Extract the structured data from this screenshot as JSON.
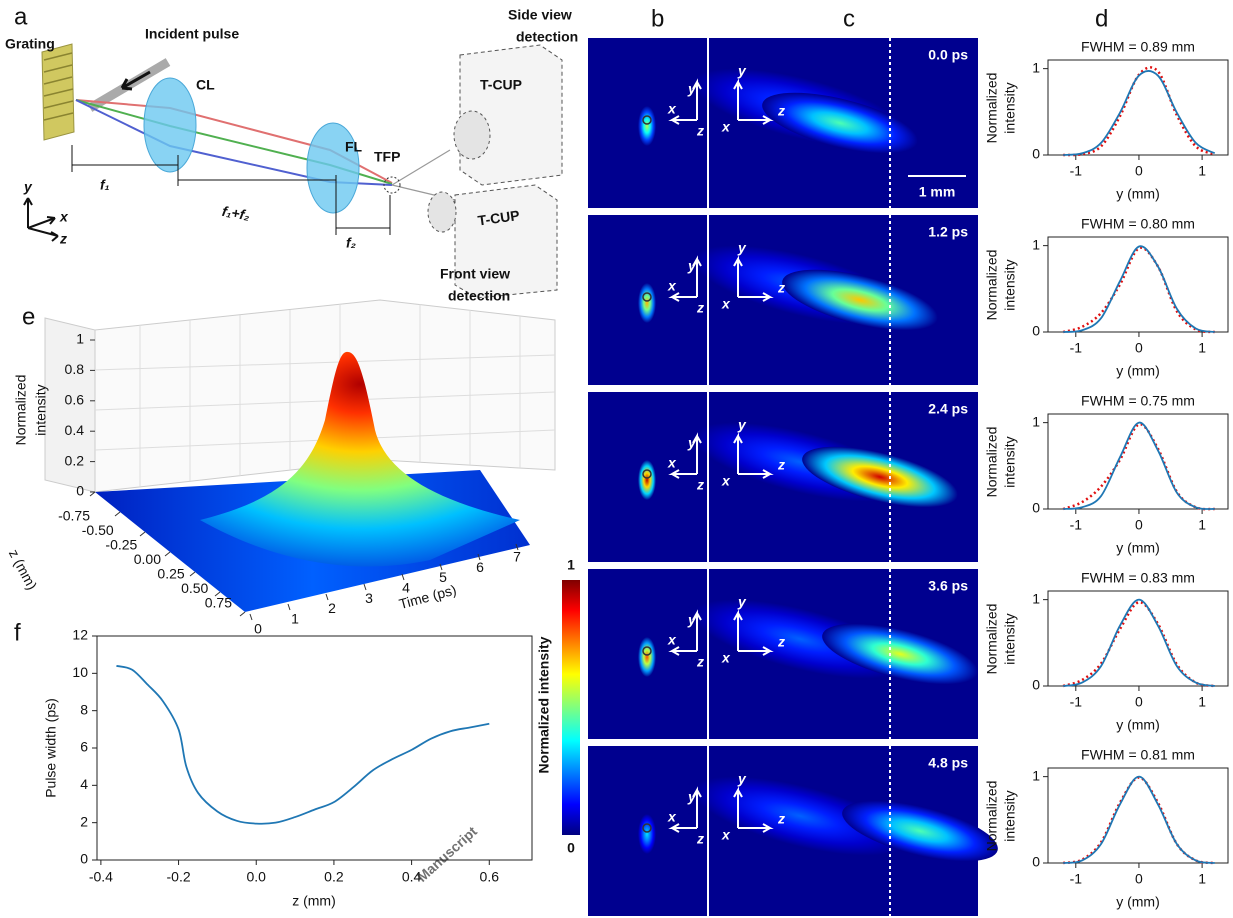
{
  "panel_labels": [
    "a",
    "b",
    "c",
    "d",
    "e",
    "f"
  ],
  "schematic": {
    "grating": "Grating",
    "incident_pulse": "Incident pulse",
    "cylindrical_lens": "CL",
    "focusing_lens": "FL",
    "focal_plane": "TFP",
    "side_view": [
      "Side view",
      "detection"
    ],
    "front_view": [
      "Front view",
      "detection"
    ],
    "camera_side": "T-CUP",
    "camera_front": "T-CUP",
    "distance_1": "f₁",
    "distance_12": "f₁+f₂",
    "distance_2": "f₂",
    "axes": [
      "x",
      "y",
      "z"
    ]
  },
  "frames": {
    "times": [
      "0.0 ps",
      "1.2 ps",
      "2.4 ps",
      "3.6 ps",
      "4.8 ps"
    ],
    "scale_bar": "1 mm",
    "axes": [
      "x",
      "y",
      "z"
    ],
    "colorbar": {
      "max": "1",
      "min": "0",
      "label": "Normalized intensity"
    }
  },
  "profiles": {
    "xlim": [
      -1.44,
      1.41
    ],
    "ylim": [
      0,
      1.1
    ],
    "xticks": [
      -1,
      0,
      1
    ],
    "yticks": [
      0,
      1
    ],
    "xlabel": "y (mm)",
    "ylabel": [
      "Normalized",
      "intensity"
    ],
    "fit_color": "#1f77b4",
    "measured_color": "#e01010",
    "x": [
      -1.2,
      -0.9,
      -0.6,
      -0.3,
      0,
      0.3,
      0.6,
      0.9,
      1.2
    ],
    "plots": [
      {
        "title": "FWHM = 0.89 mm",
        "fit": [
          0.0,
          0.02,
          0.14,
          0.49,
          0.92,
          0.92,
          0.49,
          0.14,
          0.02
        ],
        "measured": [
          0.0,
          0.01,
          0.1,
          0.45,
          0.93,
          0.97,
          0.46,
          0.1,
          0.01
        ]
      },
      {
        "title": "FWHM = 0.80 mm",
        "fit": [
          0.0,
          0.02,
          0.16,
          0.59,
          0.99,
          0.76,
          0.27,
          0.04,
          0.0
        ],
        "measured": [
          0.0,
          0.06,
          0.22,
          0.55,
          0.97,
          0.76,
          0.24,
          0.03,
          0.0
        ]
      },
      {
        "title": "FWHM = 0.75 mm",
        "fit": [
          0.0,
          0.02,
          0.15,
          0.6,
          1.0,
          0.68,
          0.19,
          0.02,
          0.0
        ],
        "measured": [
          0.0,
          0.08,
          0.26,
          0.57,
          0.98,
          0.7,
          0.2,
          0.02,
          0.0
        ]
      },
      {
        "title": "FWHM = 0.83 mm",
        "fit": [
          0.0,
          0.04,
          0.23,
          0.7,
          1.0,
          0.7,
          0.23,
          0.04,
          0.0
        ],
        "measured": [
          0.0,
          0.07,
          0.26,
          0.66,
          0.97,
          0.72,
          0.25,
          0.04,
          0.0
        ]
      },
      {
        "title": "FWHM = 0.81 mm",
        "fit": [
          0.0,
          0.03,
          0.22,
          0.68,
          1.0,
          0.68,
          0.22,
          0.03,
          0.0
        ],
        "measured": [
          0.0,
          0.04,
          0.24,
          0.7,
          0.99,
          0.7,
          0.22,
          0.03,
          0.0
        ]
      }
    ]
  },
  "surface": {
    "zlabel": [
      "Normalized",
      "intensity"
    ],
    "zticks": [
      0,
      0.2,
      0.4,
      0.6,
      0.8,
      1
    ],
    "depth_label": "z (mm)",
    "depth_ticks": [
      -0.75,
      {
        "value": -0.5,
        "label": "-0.50"
      },
      -0.25,
      {
        "value": 0,
        "label": "0.00"
      },
      0.25,
      {
        "value": 0.5,
        "label": "0.50"
      },
      0.75
    ],
    "time_label": "Time (ps)",
    "time_ticks": [
      0,
      1,
      2,
      3,
      4,
      5,
      6,
      7
    ]
  },
  "chart_data": {
    "type": "line",
    "xlabel": "z (mm)",
    "ylabel": "Pulse width (ps)",
    "x": [
      -0.36,
      -0.32,
      -0.28,
      -0.24,
      -0.2,
      -0.18,
      -0.15,
      -0.1,
      -0.05,
      0,
      0.05,
      0.1,
      0.15,
      0.2,
      0.25,
      0.3,
      0.35,
      0.4,
      0.45,
      0.5,
      0.55,
      0.6
    ],
    "values": [
      10.4,
      10.2,
      9.4,
      8.5,
      7.0,
      5.0,
      3.6,
      2.6,
      2.1,
      1.95,
      2.0,
      2.3,
      2.7,
      3.1,
      3.9,
      4.8,
      5.4,
      5.9,
      6.5,
      6.9,
      7.1,
      7.3
    ],
    "color": "#1f77b4",
    "xlim": [
      -0.41,
      0.71
    ],
    "ylim": [
      0,
      12
    ],
    "xticks": [
      -0.4,
      -0.2,
      {
        "value": 0,
        "label": "0.0"
      },
      0.2,
      0.4,
      0.6
    ],
    "yticks": [
      0,
      2,
      4,
      6,
      8,
      10,
      12
    ]
  },
  "watermark": "Manuscript"
}
